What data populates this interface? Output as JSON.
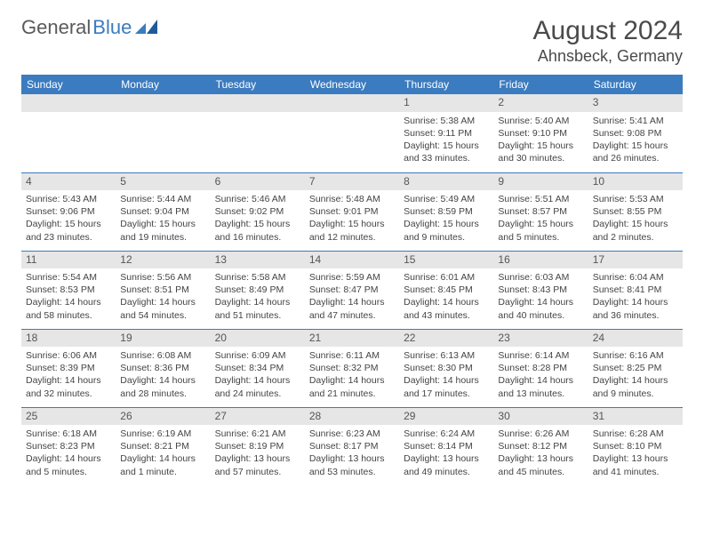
{
  "logo": {
    "part1": "General",
    "part2": "Blue"
  },
  "title": "August 2024",
  "location": "Ahnsbeck, Germany",
  "colors": {
    "header_bg": "#3b7bbf",
    "header_text": "#ffffff",
    "daynum_bg": "#e6e6e6",
    "border": "#3b7bbf",
    "logo_gray": "#5a5a5a",
    "logo_blue": "#3b7bbf"
  },
  "weekdays": [
    "Sunday",
    "Monday",
    "Tuesday",
    "Wednesday",
    "Thursday",
    "Friday",
    "Saturday"
  ],
  "weeks": [
    [
      null,
      null,
      null,
      null,
      {
        "n": "1",
        "sr": "5:38 AM",
        "ss": "9:11 PM",
        "dl": "15 hours and 33 minutes."
      },
      {
        "n": "2",
        "sr": "5:40 AM",
        "ss": "9:10 PM",
        "dl": "15 hours and 30 minutes."
      },
      {
        "n": "3",
        "sr": "5:41 AM",
        "ss": "9:08 PM",
        "dl": "15 hours and 26 minutes."
      }
    ],
    [
      {
        "n": "4",
        "sr": "5:43 AM",
        "ss": "9:06 PM",
        "dl": "15 hours and 23 minutes."
      },
      {
        "n": "5",
        "sr": "5:44 AM",
        "ss": "9:04 PM",
        "dl": "15 hours and 19 minutes."
      },
      {
        "n": "6",
        "sr": "5:46 AM",
        "ss": "9:02 PM",
        "dl": "15 hours and 16 minutes."
      },
      {
        "n": "7",
        "sr": "5:48 AM",
        "ss": "9:01 PM",
        "dl": "15 hours and 12 minutes."
      },
      {
        "n": "8",
        "sr": "5:49 AM",
        "ss": "8:59 PM",
        "dl": "15 hours and 9 minutes."
      },
      {
        "n": "9",
        "sr": "5:51 AM",
        "ss": "8:57 PM",
        "dl": "15 hours and 5 minutes."
      },
      {
        "n": "10",
        "sr": "5:53 AM",
        "ss": "8:55 PM",
        "dl": "15 hours and 2 minutes."
      }
    ],
    [
      {
        "n": "11",
        "sr": "5:54 AM",
        "ss": "8:53 PM",
        "dl": "14 hours and 58 minutes."
      },
      {
        "n": "12",
        "sr": "5:56 AM",
        "ss": "8:51 PM",
        "dl": "14 hours and 54 minutes."
      },
      {
        "n": "13",
        "sr": "5:58 AM",
        "ss": "8:49 PM",
        "dl": "14 hours and 51 minutes."
      },
      {
        "n": "14",
        "sr": "5:59 AM",
        "ss": "8:47 PM",
        "dl": "14 hours and 47 minutes."
      },
      {
        "n": "15",
        "sr": "6:01 AM",
        "ss": "8:45 PM",
        "dl": "14 hours and 43 minutes."
      },
      {
        "n": "16",
        "sr": "6:03 AM",
        "ss": "8:43 PM",
        "dl": "14 hours and 40 minutes."
      },
      {
        "n": "17",
        "sr": "6:04 AM",
        "ss": "8:41 PM",
        "dl": "14 hours and 36 minutes."
      }
    ],
    [
      {
        "n": "18",
        "sr": "6:06 AM",
        "ss": "8:39 PM",
        "dl": "14 hours and 32 minutes."
      },
      {
        "n": "19",
        "sr": "6:08 AM",
        "ss": "8:36 PM",
        "dl": "14 hours and 28 minutes."
      },
      {
        "n": "20",
        "sr": "6:09 AM",
        "ss": "8:34 PM",
        "dl": "14 hours and 24 minutes."
      },
      {
        "n": "21",
        "sr": "6:11 AM",
        "ss": "8:32 PM",
        "dl": "14 hours and 21 minutes."
      },
      {
        "n": "22",
        "sr": "6:13 AM",
        "ss": "8:30 PM",
        "dl": "14 hours and 17 minutes."
      },
      {
        "n": "23",
        "sr": "6:14 AM",
        "ss": "8:28 PM",
        "dl": "14 hours and 13 minutes."
      },
      {
        "n": "24",
        "sr": "6:16 AM",
        "ss": "8:25 PM",
        "dl": "14 hours and 9 minutes."
      }
    ],
    [
      {
        "n": "25",
        "sr": "6:18 AM",
        "ss": "8:23 PM",
        "dl": "14 hours and 5 minutes."
      },
      {
        "n": "26",
        "sr": "6:19 AM",
        "ss": "8:21 PM",
        "dl": "14 hours and 1 minute."
      },
      {
        "n": "27",
        "sr": "6:21 AM",
        "ss": "8:19 PM",
        "dl": "13 hours and 57 minutes."
      },
      {
        "n": "28",
        "sr": "6:23 AM",
        "ss": "8:17 PM",
        "dl": "13 hours and 53 minutes."
      },
      {
        "n": "29",
        "sr": "6:24 AM",
        "ss": "8:14 PM",
        "dl": "13 hours and 49 minutes."
      },
      {
        "n": "30",
        "sr": "6:26 AM",
        "ss": "8:12 PM",
        "dl": "13 hours and 45 minutes."
      },
      {
        "n": "31",
        "sr": "6:28 AM",
        "ss": "8:10 PM",
        "dl": "13 hours and 41 minutes."
      }
    ]
  ],
  "labels": {
    "sunrise": "Sunrise: ",
    "sunset": "Sunset: ",
    "daylight": "Daylight: "
  }
}
